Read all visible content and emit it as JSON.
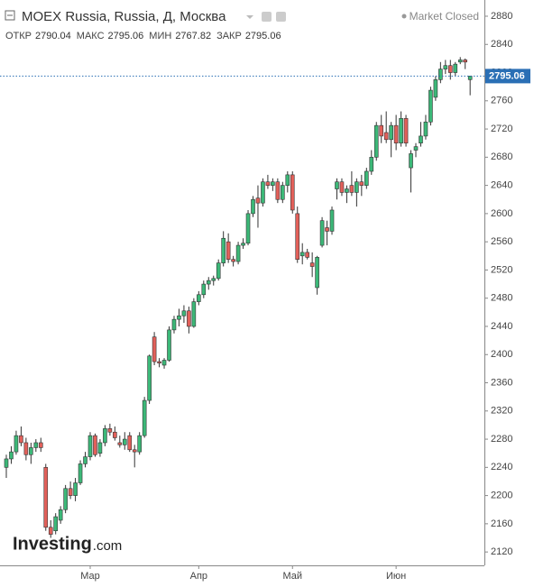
{
  "chart_data": {
    "type": "candlestick",
    "title": "MOEX Russia, Russia, Д, Москва",
    "status": "Market Closed",
    "ohlc_labels": [
      "ОТКР",
      "МАКС",
      "МИН",
      "ЗАКР"
    ],
    "logo": "Investing",
    "logo_suffix": ".com",
    "categories": [
      null,
      null,
      null,
      null,
      null,
      null,
      null,
      null,
      null,
      null,
      null,
      null,
      null,
      null,
      null,
      null,
      null,
      "Мар",
      null,
      null,
      null,
      null,
      null,
      null,
      null,
      null,
      null,
      null,
      null,
      null,
      null,
      null,
      null,
      null,
      null,
      null,
      null,
      null,
      null,
      "Апр",
      null,
      null,
      null,
      null,
      null,
      null,
      null,
      null,
      null,
      null,
      null,
      null,
      null,
      null,
      null,
      null,
      null,
      null,
      "Май",
      null,
      null,
      null,
      null,
      null,
      null,
      null,
      null,
      null,
      null,
      null,
      null,
      null,
      null,
      null,
      null,
      null,
      null,
      null,
      null,
      "Июн",
      null,
      null,
      null,
      null,
      null,
      null,
      null,
      null,
      null,
      null,
      null,
      null,
      null,
      null,
      null
    ],
    "open": [
      2240,
      2252,
      2262,
      2285,
      2275,
      2258,
      2268,
      2275,
      2240,
      2155,
      2150,
      2165,
      2180,
      2210,
      2200,
      2218,
      2245,
      2255,
      2285,
      2260,
      2275,
      2295,
      2290,
      2275,
      2272,
      2285,
      2265,
      2262,
      2285,
      2335,
      2425,
      2390,
      2385,
      2392,
      2435,
      2450,
      2455,
      2462,
      2440,
      2475,
      2485,
      2500,
      2505,
      2508,
      2530,
      2560,
      2535,
      2532,
      2555,
      2558,
      2600,
      2622,
      2615,
      2645,
      2640,
      2645,
      2620,
      2640,
      2655,
      2600,
      2540,
      2545,
      2530,
      2495,
      2555,
      2580,
      2575,
      2635,
      2645,
      2630,
      2640,
      2630,
      2645,
      2640,
      2660,
      2680,
      2725,
      2715,
      2705,
      2725,
      2700,
      2735,
      2665,
      2690,
      2700,
      2710,
      2730,
      2765,
      2790,
      2805,
      2810,
      2800,
      2815,
      2818,
      2790.04
    ],
    "high": [
      2258,
      2270,
      2292,
      2298,
      2282,
      2275,
      2280,
      2282,
      2245,
      2165,
      2175,
      2185,
      2215,
      2220,
      2225,
      2250,
      2262,
      2290,
      2288,
      2280,
      2300,
      2302,
      2298,
      2285,
      2290,
      2290,
      2272,
      2290,
      2340,
      2400,
      2432,
      2395,
      2395,
      2440,
      2455,
      2465,
      2470,
      2468,
      2480,
      2490,
      2505,
      2510,
      2512,
      2535,
      2575,
      2572,
      2540,
      2560,
      2565,
      2605,
      2625,
      2640,
      2650,
      2655,
      2650,
      2650,
      2645,
      2660,
      2660,
      2610,
      2558,
      2550,
      2545,
      2540,
      2595,
      2590,
      2610,
      2650,
      2650,
      2640,
      2660,
      2650,
      2655,
      2665,
      2690,
      2730,
      2740,
      2745,
      2730,
      2740,
      2745,
      2740,
      2690,
      2700,
      2730,
      2740,
      2780,
      2795,
      2815,
      2818,
      2818,
      2815,
      2822,
      2820,
      2795.06
    ],
    "low": [
      2225,
      2245,
      2258,
      2270,
      2250,
      2245,
      2262,
      2262,
      2150,
      2140,
      2145,
      2160,
      2175,
      2195,
      2192,
      2215,
      2240,
      2250,
      2255,
      2255,
      2270,
      2285,
      2278,
      2268,
      2265,
      2262,
      2240,
      2258,
      2282,
      2330,
      2385,
      2382,
      2380,
      2390,
      2430,
      2440,
      2445,
      2430,
      2438,
      2470,
      2480,
      2492,
      2498,
      2505,
      2525,
      2530,
      2525,
      2528,
      2550,
      2555,
      2595,
      2580,
      2610,
      2635,
      2632,
      2615,
      2615,
      2630,
      2600,
      2530,
      2528,
      2535,
      2510,
      2485,
      2552,
      2555,
      2570,
      2620,
      2625,
      2615,
      2625,
      2610,
      2625,
      2635,
      2655,
      2675,
      2700,
      2700,
      2680,
      2690,
      2695,
      2695,
      2630,
      2680,
      2695,
      2705,
      2725,
      2760,
      2785,
      2798,
      2790,
      2795,
      2812,
      2805,
      2767.82
    ],
    "close": [
      2252,
      2262,
      2285,
      2275,
      2258,
      2268,
      2275,
      2268,
      2155,
      2145,
      2170,
      2180,
      2210,
      2200,
      2218,
      2245,
      2255,
      2285,
      2258,
      2275,
      2295,
      2290,
      2282,
      2272,
      2280,
      2265,
      2262,
      2285,
      2335,
      2398,
      2390,
      2388,
      2392,
      2435,
      2450,
      2455,
      2462,
      2440,
      2475,
      2485,
      2500,
      2505,
      2508,
      2530,
      2565,
      2535,
      2532,
      2555,
      2558,
      2600,
      2620,
      2615,
      2645,
      2640,
      2645,
      2620,
      2640,
      2655,
      2605,
      2535,
      2545,
      2538,
      2525,
      2538,
      2590,
      2575,
      2605,
      2645,
      2630,
      2635,
      2630,
      2645,
      2640,
      2660,
      2680,
      2725,
      2710,
      2705,
      2725,
      2700,
      2735,
      2700,
      2685,
      2695,
      2710,
      2730,
      2775,
      2790,
      2805,
      2810,
      2800,
      2812,
      2818,
      2815,
      2795.06
    ],
    "up_color": "#3cb878",
    "down_color": "#e2605a",
    "ylim": [
      2101,
      2903
    ],
    "yticks": [
      2120,
      2160,
      2200,
      2240,
      2280,
      2320,
      2360,
      2400,
      2440,
      2480,
      2520,
      2560,
      2600,
      2640,
      2680,
      2720,
      2760,
      2800,
      2840,
      2880
    ],
    "grid": false
  }
}
